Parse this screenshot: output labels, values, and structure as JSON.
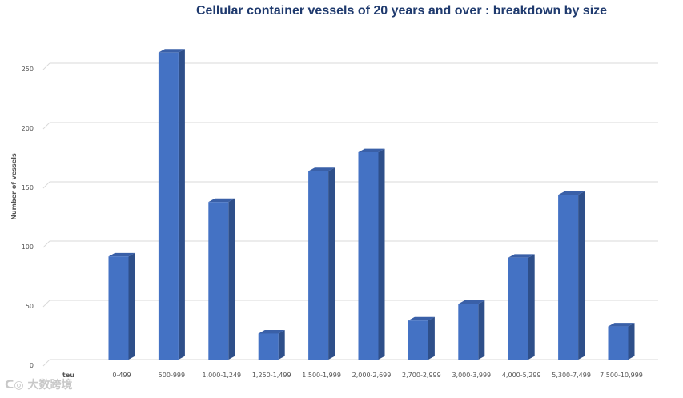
{
  "chart_data": {
    "type": "bar",
    "title": "Cellular container vessels of 20 years and over : breakdown by size",
    "xlabel": "teu",
    "ylabel": "Number of vessels",
    "categories": [
      "0-499",
      "500-999",
      "1,000-1,249",
      "1,250-1,499",
      "1,500-1,999",
      "2,000-2,699",
      "2,700-2,999",
      "3,000-3,999",
      "4,000-5,299",
      "5,300-7,499",
      "7,500-10,999"
    ],
    "values": [
      87,
      259,
      133,
      22,
      159,
      175,
      33,
      47,
      86,
      139,
      28
    ],
    "yticks": [
      0,
      50,
      100,
      150,
      200,
      250
    ],
    "ylim": [
      0,
      260
    ],
    "grid": true,
    "bar_color": "#4472c4",
    "bar_side_color": "#2e4f8a",
    "bar_top_color": "#3a60a8"
  },
  "watermark": "大数跨境"
}
